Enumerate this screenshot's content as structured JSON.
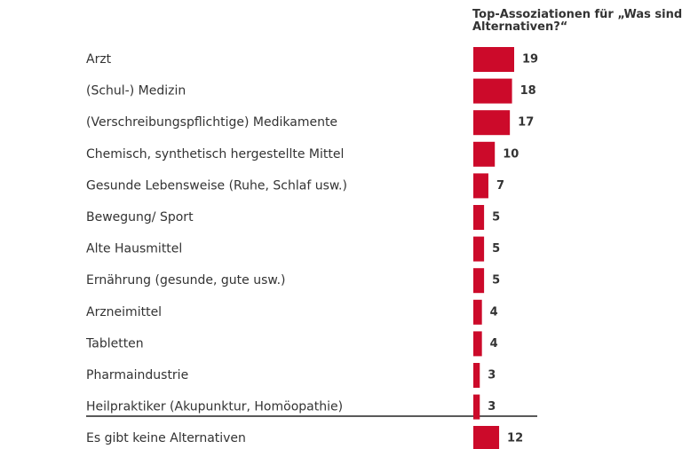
{
  "chart_data": {
    "type": "bar",
    "orientation": "horizontal",
    "title": "Top-Assoziationen für „Was sind Alternativen?“",
    "categories": [
      "Arzt",
      "(Schul-) Medizin",
      "(Verschreibungspflichtige) Medikamente",
      "Chemisch, synthetisch hergestellte Mittel",
      "Gesunde Lebensweise (Ruhe, Schlaf usw.)",
      "Bewegung/ Sport",
      "Alte Hausmittel",
      "Ernährung (gesunde, gute usw.)",
      "Arzneimittel",
      "Tabletten",
      "Pharmaindustrie",
      "Heilpraktiker (Akupunktur, Homöopathie)",
      "Es gibt keine Alternativen"
    ],
    "values": [
      19,
      18,
      17,
      10,
      7,
      5,
      5,
      5,
      4,
      4,
      3,
      3,
      12
    ],
    "color": "#cc0a2a"
  }
}
